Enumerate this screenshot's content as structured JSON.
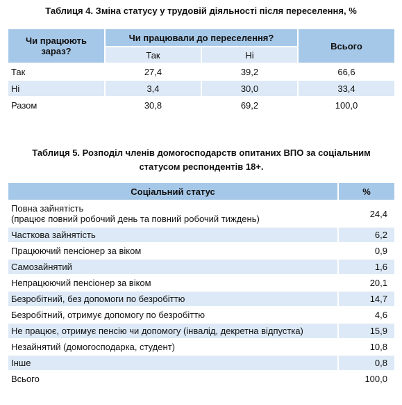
{
  "table4": {
    "title": "Таблиця 4. Зміна статусу у трудовій діяльності після переселення, %",
    "header": {
      "row_head": "Чи працюють зараз?",
      "group": "Чи працювали до переселення?",
      "sub": [
        "Так",
        "Ні"
      ],
      "total": "Всього"
    },
    "rows": [
      [
        "Так",
        "27,4",
        "39,2",
        "66,6"
      ],
      [
        "Ні",
        "3,4",
        "30,0",
        "33,4"
      ],
      [
        "Разом",
        "30,8",
        "69,2",
        "100,0"
      ]
    ]
  },
  "table5": {
    "title": "Таблиця 5. Розподіл членів домогосподарств опитаних ВПО за соціальним статусом респондентів 18+.",
    "header": [
      "Соціальний статус",
      "%"
    ],
    "rows": [
      {
        "label": "Повна зайнятість",
        "note": "(працює повний робочий день та повний робочий тиждень)",
        "value": "24,4"
      },
      {
        "label": "Часткова зайнятість",
        "value": "6,2"
      },
      {
        "label": "Працюючий пенсіонер за віком",
        "value": "0,9"
      },
      {
        "label": "Самозайнятий",
        "value": "1,6"
      },
      {
        "label": "Непрацюючий пенсіонер за віком",
        "value": "20,1"
      },
      {
        "label": "Безробітний, без допомоги по безробіттю",
        "value": "14,7"
      },
      {
        "label": "Безробітний, отримує допомогу по безробіттю",
        "value": "4,6"
      },
      {
        "label": "Не працює, отримує пенсію чи допомогу (інвалід, декретна відпустка)",
        "value": "15,9"
      },
      {
        "label": "Незайнятий (домогосподарка, студент)",
        "value": "10,8"
      },
      {
        "label": "Інше",
        "value": "0,8"
      },
      {
        "label": "Всього",
        "value": "100,0"
      }
    ]
  }
}
